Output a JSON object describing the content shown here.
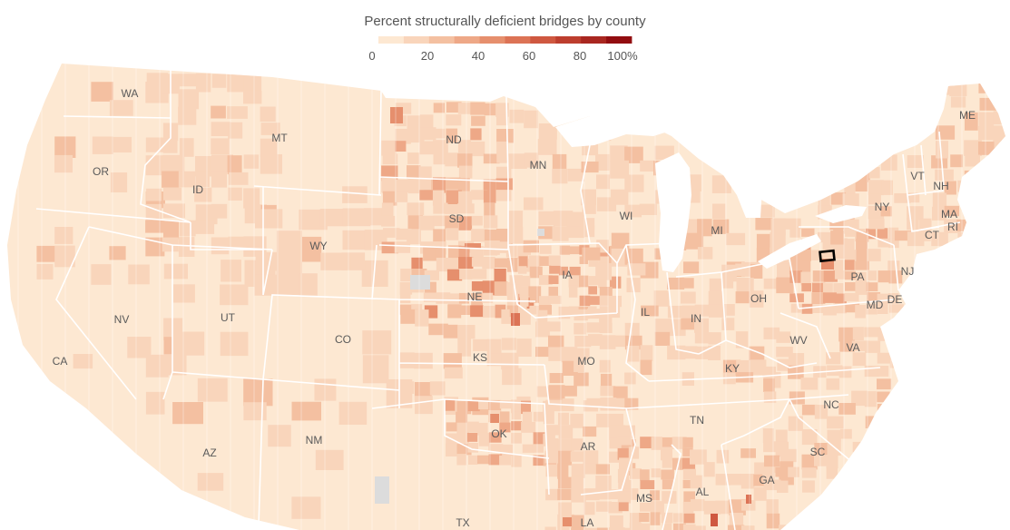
{
  "title": "Percent structurally deficient bridges by county",
  "legend": {
    "ticks": [
      "0",
      "20",
      "40",
      "60",
      "80",
      "100%"
    ],
    "bins": [
      0,
      10,
      20,
      30,
      40,
      50,
      60,
      70,
      80,
      90,
      100
    ],
    "colors": [
      "#fde8d2",
      "#f9d5bb",
      "#f4c0a1",
      "#eea887",
      "#e68f6d",
      "#dc7355",
      "#cf5840",
      "#bd3e2e",
      "#a92720",
      "#920d10"
    ]
  },
  "no_data_color": "#dcdcdc",
  "highlight_county_state": "PA",
  "states": [
    {
      "abbr": "WA",
      "name": "Washington"
    },
    {
      "abbr": "OR",
      "name": "Oregon"
    },
    {
      "abbr": "CA",
      "name": "California"
    },
    {
      "abbr": "ID",
      "name": "Idaho"
    },
    {
      "abbr": "NV",
      "name": "Nevada"
    },
    {
      "abbr": "MT",
      "name": "Montana"
    },
    {
      "abbr": "WY",
      "name": "Wyoming"
    },
    {
      "abbr": "UT",
      "name": "Utah"
    },
    {
      "abbr": "AZ",
      "name": "Arizona"
    },
    {
      "abbr": "CO",
      "name": "Colorado"
    },
    {
      "abbr": "NM",
      "name": "New Mexico"
    },
    {
      "abbr": "ND",
      "name": "North Dakota"
    },
    {
      "abbr": "SD",
      "name": "South Dakota"
    },
    {
      "abbr": "NE",
      "name": "Nebraska"
    },
    {
      "abbr": "KS",
      "name": "Kansas"
    },
    {
      "abbr": "OK",
      "name": "Oklahoma"
    },
    {
      "abbr": "TX",
      "name": "Texas"
    },
    {
      "abbr": "MN",
      "name": "Minnesota"
    },
    {
      "abbr": "IA",
      "name": "Iowa"
    },
    {
      "abbr": "MO",
      "name": "Missouri"
    },
    {
      "abbr": "AR",
      "name": "Arkansas"
    },
    {
      "abbr": "LA",
      "name": "Louisiana"
    },
    {
      "abbr": "WI",
      "name": "Wisconsin"
    },
    {
      "abbr": "IL",
      "name": "Illinois"
    },
    {
      "abbr": "MI",
      "name": "Michigan"
    },
    {
      "abbr": "IN",
      "name": "Indiana"
    },
    {
      "abbr": "OH",
      "name": "Ohio"
    },
    {
      "abbr": "KY",
      "name": "Kentucky"
    },
    {
      "abbr": "TN",
      "name": "Tennessee"
    },
    {
      "abbr": "MS",
      "name": "Mississippi"
    },
    {
      "abbr": "AL",
      "name": "Alabama"
    },
    {
      "abbr": "GA",
      "name": "Georgia"
    },
    {
      "abbr": "SC",
      "name": "South Carolina"
    },
    {
      "abbr": "NC",
      "name": "North Carolina"
    },
    {
      "abbr": "VA",
      "name": "Virginia"
    },
    {
      "abbr": "WV",
      "name": "West Virginia"
    },
    {
      "abbr": "PA",
      "name": "Pennsylvania"
    },
    {
      "abbr": "NY",
      "name": "New York"
    },
    {
      "abbr": "NJ",
      "name": "New Jersey"
    },
    {
      "abbr": "MD",
      "name": "Maryland"
    },
    {
      "abbr": "DE",
      "name": "Delaware"
    },
    {
      "abbr": "VT",
      "name": "Vermont"
    },
    {
      "abbr": "NH",
      "name": "New Hampshire"
    },
    {
      "abbr": "ME",
      "name": "Maine"
    },
    {
      "abbr": "MA",
      "name": "Massachusetts"
    },
    {
      "abbr": "CT",
      "name": "Connecticut"
    },
    {
      "abbr": "RI",
      "name": "Rhode Island"
    }
  ]
}
